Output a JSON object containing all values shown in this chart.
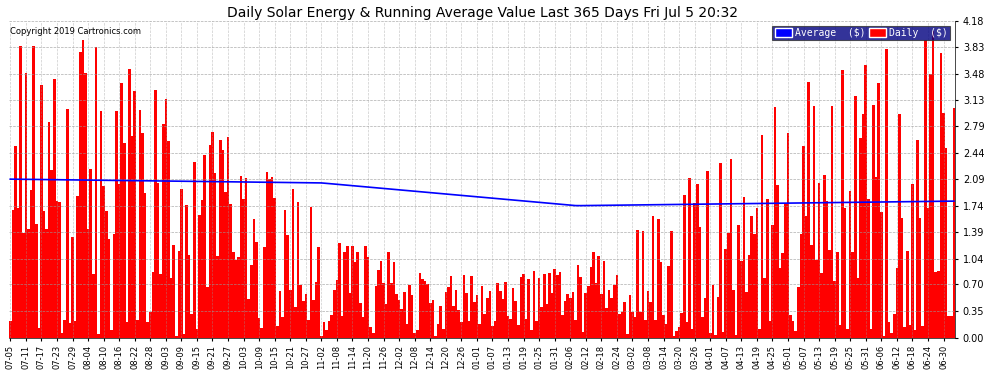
{
  "title": "Daily Solar Energy & Running Average Value Last 365 Days Fri Jul 5 20:32",
  "copyright_text": "Copyright 2019 Cartronics.com",
  "background_color": "#ffffff",
  "plot_bg_color": "#ffffff",
  "bar_color": "#ff0000",
  "avg_line_color": "#0000ff",
  "grid_color": "#aaaaaa",
  "y_ticks": [
    0.0,
    0.35,
    0.7,
    1.04,
    1.39,
    1.74,
    2.09,
    2.44,
    2.79,
    3.13,
    3.48,
    3.83,
    4.18
  ],
  "ylim": [
    0,
    4.18
  ],
  "n_bars": 365,
  "legend_avg_label": "Average  ($)",
  "legend_daily_label": "Daily  ($)",
  "x_tick_labels": [
    "07-05",
    "07-11",
    "07-17",
    "07-23",
    "07-29",
    "08-04",
    "08-10",
    "08-16",
    "08-22",
    "08-28",
    "09-03",
    "09-09",
    "09-15",
    "09-21",
    "09-27",
    "10-03",
    "10-09",
    "10-15",
    "10-21",
    "10-27",
    "11-02",
    "11-08",
    "11-14",
    "11-20",
    "11-26",
    "12-02",
    "12-08",
    "12-14",
    "12-20",
    "12-26",
    "01-01",
    "01-07",
    "01-13",
    "01-19",
    "01-25",
    "01-31",
    "02-06",
    "02-12",
    "02-18",
    "02-24",
    "03-02",
    "03-08",
    "03-14",
    "03-20",
    "03-26",
    "04-01",
    "04-07",
    "04-13",
    "04-19",
    "04-25",
    "05-01",
    "05-07",
    "05-13",
    "05-19",
    "05-25",
    "05-31",
    "06-06",
    "06-12",
    "06-18",
    "06-24",
    "06-30"
  ]
}
